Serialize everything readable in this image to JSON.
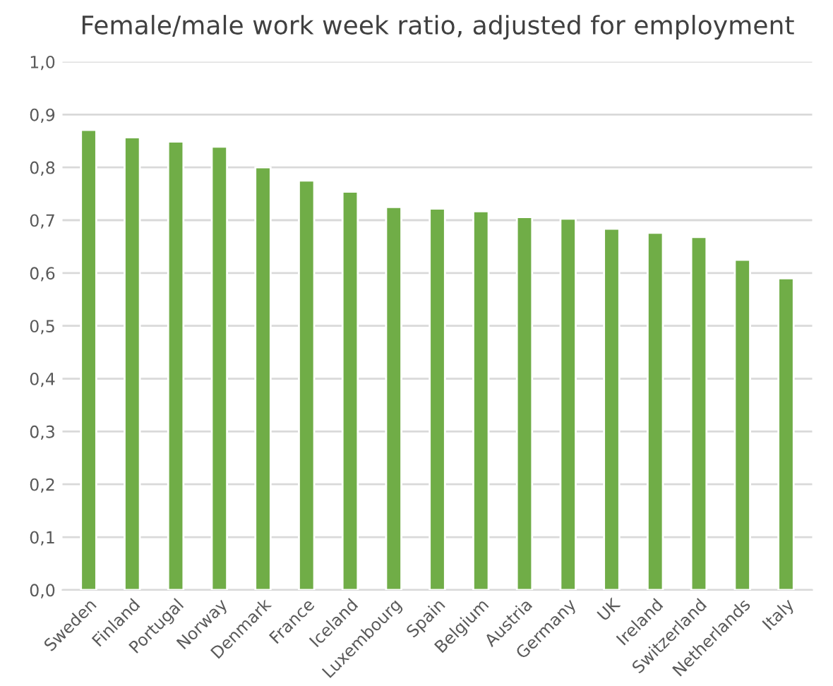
{
  "chart_data": {
    "type": "bar",
    "title": "Female/male work week ratio, adjusted for employment",
    "categories": [
      "Sweden",
      "Finland",
      "Portugal",
      "Norway",
      "Denmark",
      "France",
      "Iceland",
      "Luxembourg",
      "Spain",
      "Belgium",
      "Austria",
      "Germany",
      "UK",
      "Ireland",
      "Switzerland",
      "Netherlands",
      "Italy"
    ],
    "values": [
      0.871,
      0.857,
      0.849,
      0.839,
      0.8,
      0.775,
      0.754,
      0.725,
      0.722,
      0.717,
      0.706,
      0.703,
      0.684,
      0.676,
      0.668,
      0.625,
      0.59
    ],
    "color": "#70ad47",
    "ylim": [
      0,
      1
    ],
    "yticks": [
      {
        "value": 0,
        "label": "0,0"
      },
      {
        "value": 0.1,
        "label": "0,1"
      },
      {
        "value": 0.2,
        "label": "0,2"
      },
      {
        "value": 0.3,
        "label": "0,3"
      },
      {
        "value": 0.4,
        "label": "0,4"
      },
      {
        "value": 0.5,
        "label": "0,5"
      },
      {
        "value": 0.6,
        "label": "0,6"
      },
      {
        "value": 0.7,
        "label": "0,7"
      },
      {
        "value": 0.8,
        "label": "0,8"
      },
      {
        "value": 0.9,
        "label": "0,9"
      },
      {
        "value": 1.0,
        "label": "1,0"
      }
    ],
    "grid": "y"
  }
}
